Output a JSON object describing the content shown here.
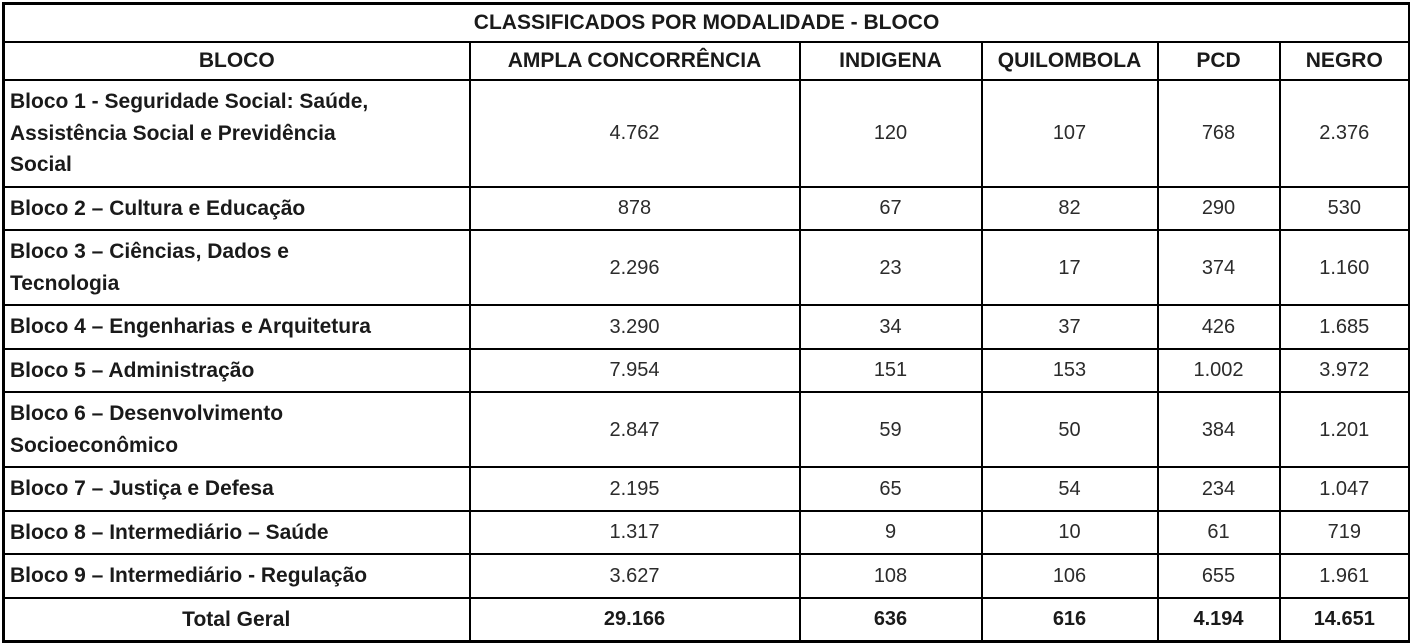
{
  "table": {
    "title": "CLASSIFICADOS POR MODALIDADE - BLOCO",
    "columns": [
      "BLOCO",
      "AMPLA CONCORRÊNCIA",
      "INDIGENA",
      "QUILOMBOLA",
      "PCD",
      "NEGRO"
    ],
    "rows": [
      {
        "bloco": "Bloco 1 - Seguridade Social: Saúde,\nAssistência Social e Previdência\nSocial",
        "values": [
          "4.762",
          "120",
          "107",
          "768",
          "2.376"
        ]
      },
      {
        "bloco": "Bloco 2 – Cultura e Educação",
        "values": [
          "878",
          "67",
          "82",
          "290",
          "530"
        ]
      },
      {
        "bloco": "Bloco 3 – Ciências, Dados e\nTecnologia",
        "values": [
          "2.296",
          "23",
          "17",
          "374",
          "1.160"
        ]
      },
      {
        "bloco": "Bloco 4 – Engenharias e Arquitetura",
        "values": [
          "3.290",
          "34",
          "37",
          "426",
          "1.685"
        ]
      },
      {
        "bloco": "Bloco 5 – Administração",
        "values": [
          "7.954",
          "151",
          "153",
          "1.002",
          "3.972"
        ]
      },
      {
        "bloco": "Bloco 6 – Desenvolvimento\nSocioeconômico",
        "values": [
          "2.847",
          "59",
          "50",
          "384",
          "1.201"
        ]
      },
      {
        "bloco": "Bloco 7 – Justiça e Defesa",
        "values": [
          "2.195",
          "65",
          "54",
          "234",
          "1.047"
        ]
      },
      {
        "bloco": "Bloco 8 – Intermediário – Saúde",
        "values": [
          "1.317",
          "9",
          "10",
          "61",
          "719"
        ]
      },
      {
        "bloco": "Bloco 9 – Intermediário - Regulação",
        "values": [
          "3.627",
          "108",
          "106",
          "655",
          "1.961"
        ]
      }
    ],
    "total": {
      "label": "Total Geral",
      "values": [
        "29.166",
        "636",
        "616",
        "4.194",
        "14.651"
      ]
    }
  },
  "chart_data": {
    "type": "table",
    "title": "CLASSIFICADOS POR MODALIDADE - BLOCO",
    "columns": [
      "BLOCO",
      "AMPLA CONCORRÊNCIA",
      "INDIGENA",
      "QUILOMBOLA",
      "PCD",
      "NEGRO"
    ],
    "rows": [
      [
        "Bloco 1 - Seguridade Social: Saúde, Assistência Social e Previdência Social",
        "4.762",
        "120",
        "107",
        "768",
        "2.376"
      ],
      [
        "Bloco 2 – Cultura e Educação",
        "878",
        "67",
        "82",
        "290",
        "530"
      ],
      [
        "Bloco 3 – Ciências, Dados e Tecnologia",
        "2.296",
        "23",
        "17",
        "374",
        "1.160"
      ],
      [
        "Bloco 4 – Engenharias e Arquitetura",
        "3.290",
        "34",
        "37",
        "426",
        "1.685"
      ],
      [
        "Bloco 5 – Administração",
        "7.954",
        "151",
        "153",
        "1.002",
        "3.972"
      ],
      [
        "Bloco 6 – Desenvolvimento Socioeconômico",
        "2.847",
        "59",
        "50",
        "384",
        "1.201"
      ],
      [
        "Bloco 7 – Justiça e Defesa",
        "2.195",
        "65",
        "54",
        "234",
        "1.047"
      ],
      [
        "Bloco 8 – Intermediário – Saúde",
        "1.317",
        "9",
        "10",
        "61",
        "719"
      ],
      [
        "Bloco 9 – Intermediário - Regulação",
        "3.627",
        "108",
        "106",
        "655",
        "1.961"
      ],
      [
        "Total Geral",
        "29.166",
        "636",
        "616",
        "4.194",
        "14.651"
      ]
    ]
  }
}
